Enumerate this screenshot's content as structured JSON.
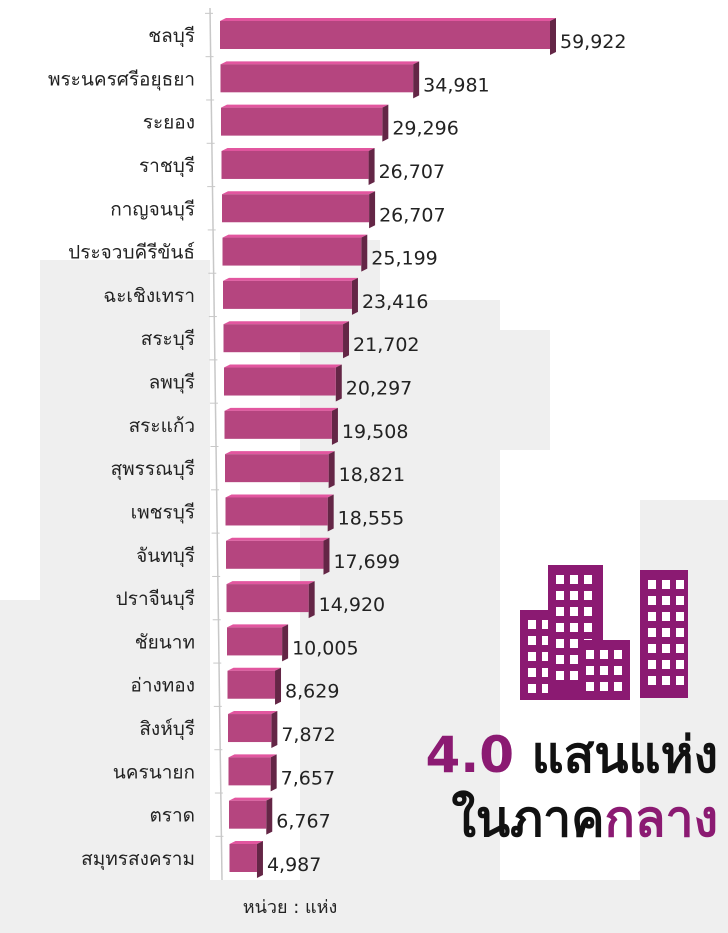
{
  "chart_data": {
    "type": "bar",
    "orientation": "horizontal",
    "categories": [
      "ชลบุรี",
      "พระนครศรีอยุธยา",
      "ระยอง",
      "ราชบุรี",
      "กาญจนบุรี",
      "ประจวบคีรีขันธ์",
      "ฉะเชิงเทรา",
      "สระบุรี",
      "ลพบุรี",
      "สระแก้ว",
      "สุพรรณบุรี",
      "เพชรบุรี",
      "จันทบุรี",
      "ปราจีนบุรี",
      "ชัยนาท",
      "อ่างทอง",
      "สิงห์บุรี",
      "นครนายก",
      "ตราด",
      "สมุทรสงคราม"
    ],
    "values": [
      59922,
      34981,
      29296,
      26707,
      26707,
      25199,
      23416,
      21702,
      20297,
      19508,
      18821,
      18555,
      17699,
      14920,
      10005,
      8629,
      7872,
      7657,
      6767,
      4987
    ],
    "value_labels": [
      "59,922",
      "34,981",
      "29,296",
      "26,707",
      "26,707",
      "25,199",
      "23,416",
      "21,702",
      "20,297",
      "19,508",
      "18,821",
      "18,555",
      "17,699",
      "14,920",
      "10,005",
      "8,629",
      "7,872",
      "7,657",
      "6,767",
      "4,987"
    ],
    "color": "#b5457f",
    "unit_note": "หน่วย : แห่ง",
    "annotations": {
      "total_number": "4.0",
      "total_text": "แสนแห่ง",
      "region_prefix": "ในภาค",
      "region_name": "กลาง"
    },
    "accent_color": "#8b1a72"
  }
}
